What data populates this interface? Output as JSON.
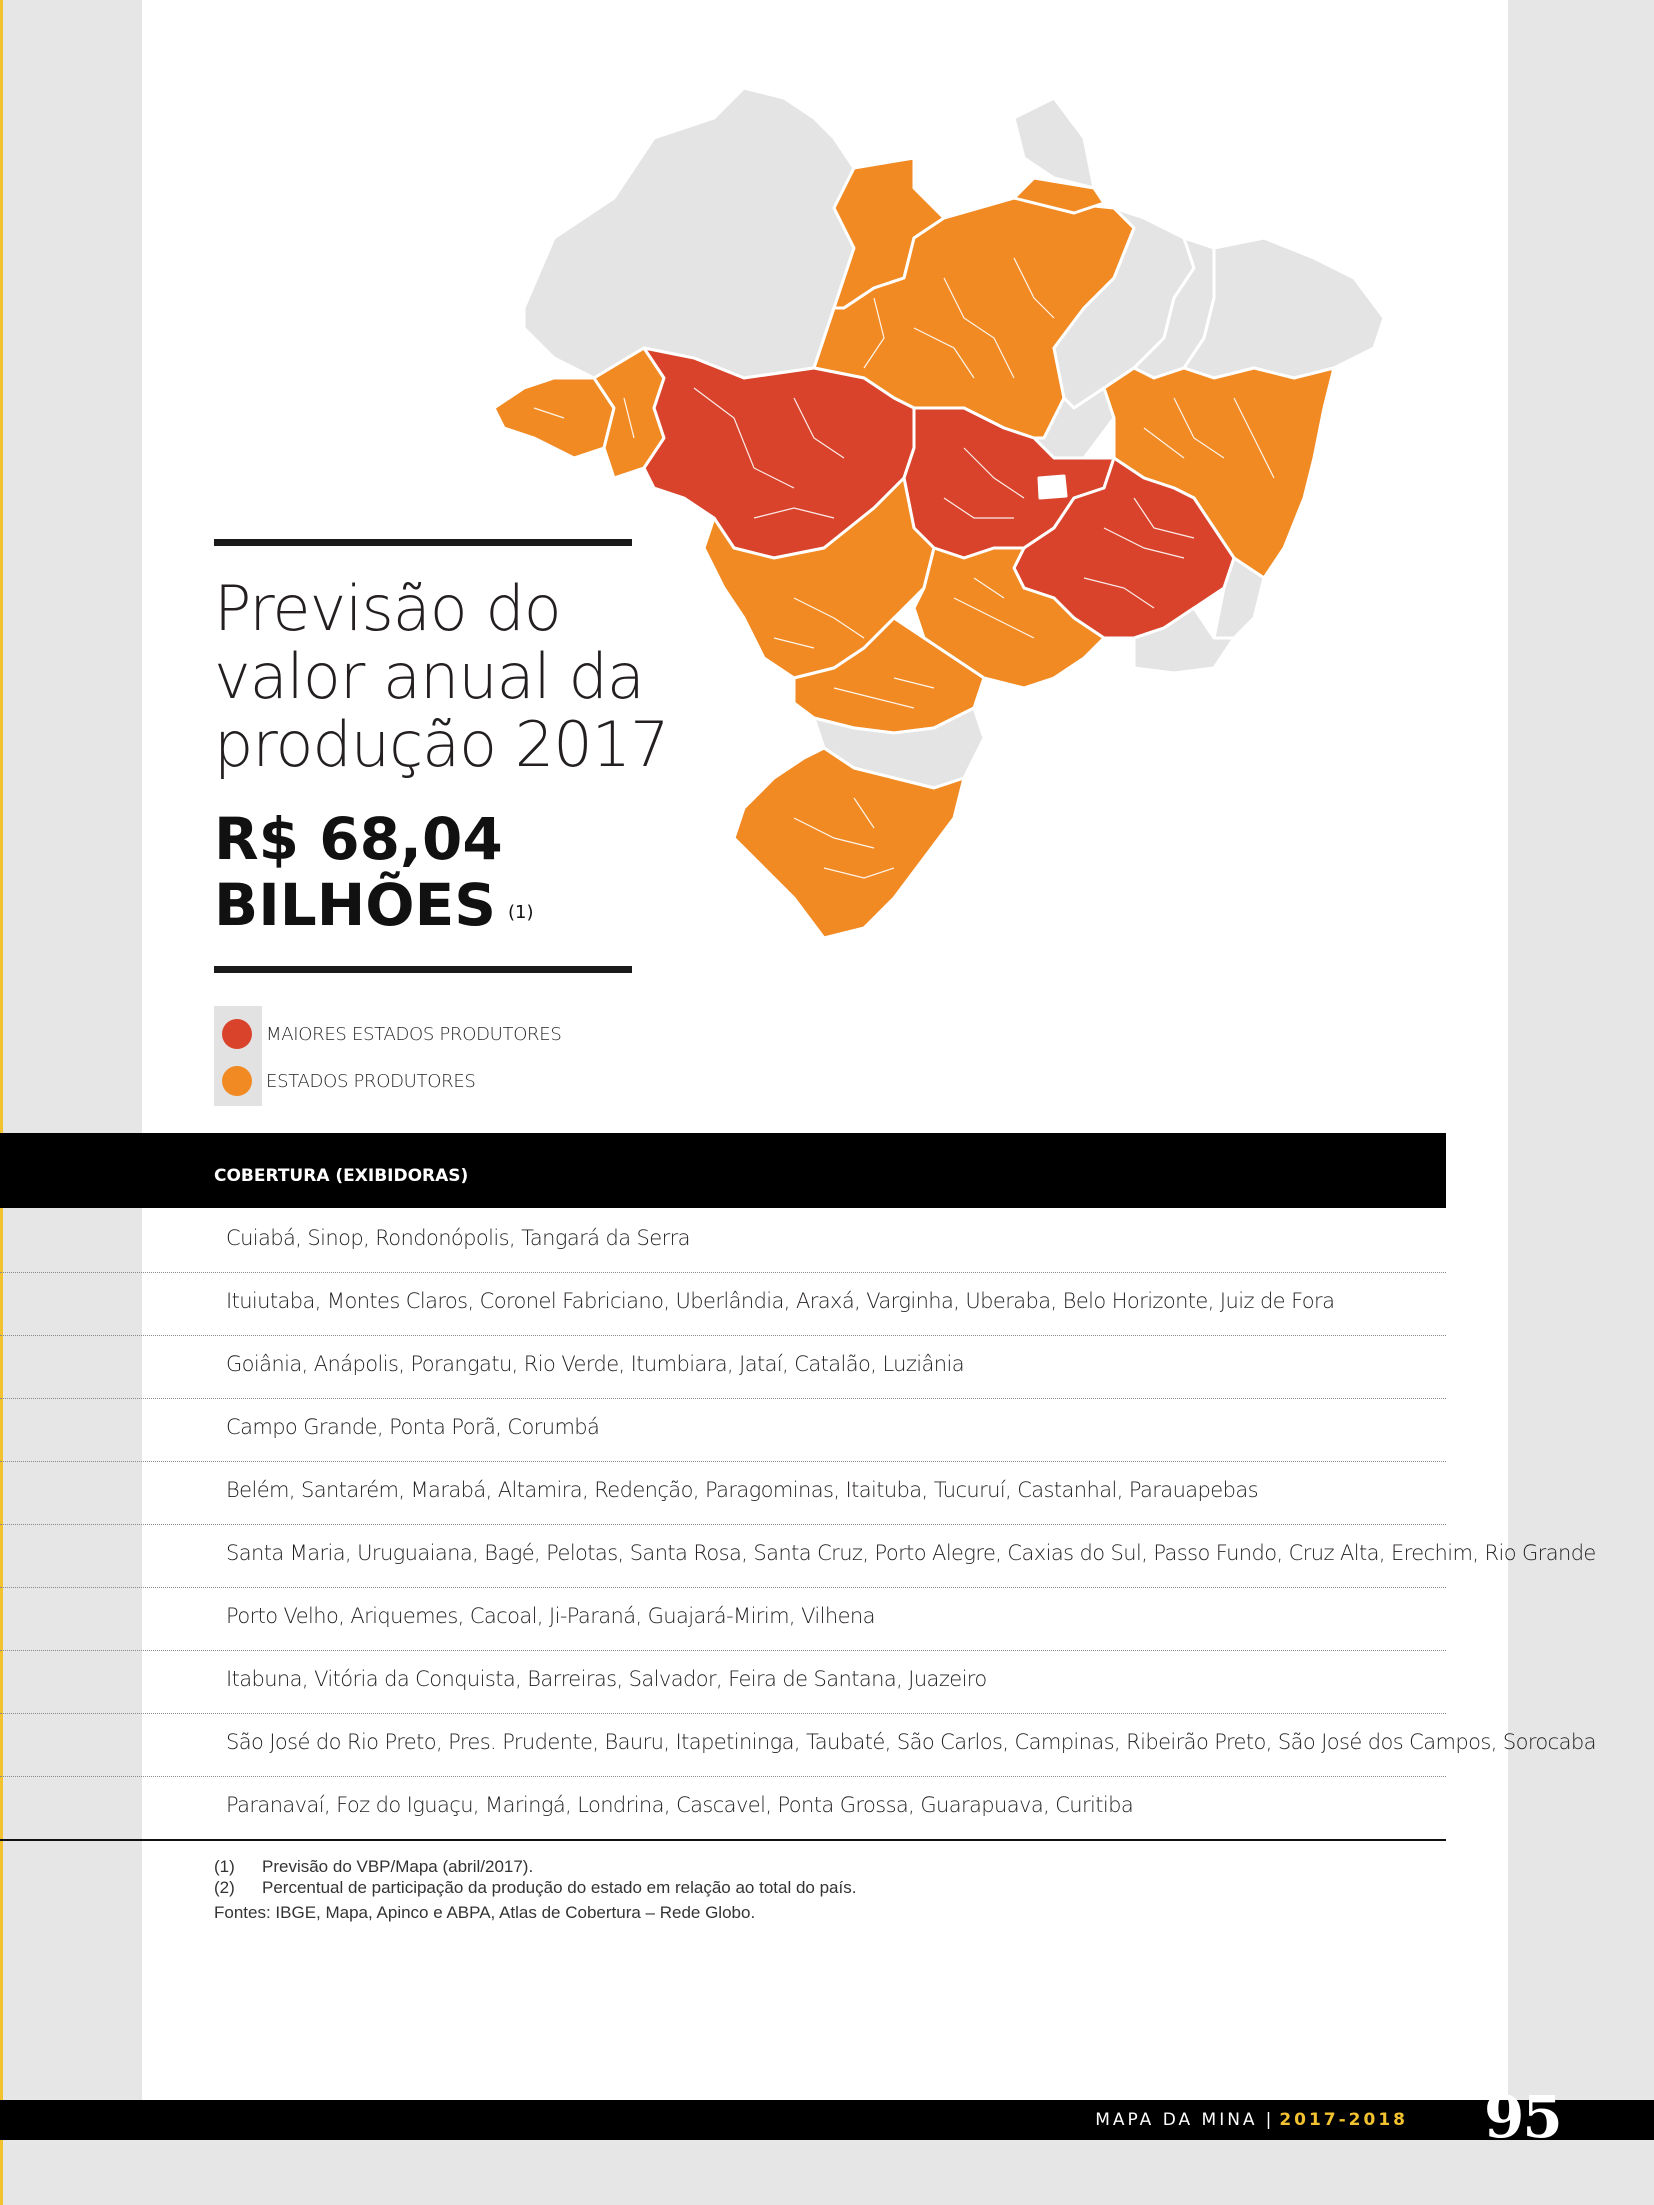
{
  "title": {
    "lines": [
      "Previsão do",
      "valor anual da",
      "produção 2017"
    ],
    "value_line1": "R$ 68,04",
    "value_line2": "BILHÕES",
    "value_note": "(1)"
  },
  "legend": [
    {
      "label": "MAIORES ESTADOS PRODUTORES",
      "color": "#d9432b"
    },
    {
      "label": "ESTADOS PRODUTORES",
      "color": "#f28a23"
    }
  ],
  "map": {
    "colors": {
      "major": "#d9432b",
      "producer": "#f28a23",
      "other": "#e4e4e5",
      "border": "#ffffff"
    }
  },
  "coverage": {
    "title": "COBERTURA (EXIBIDORAS)",
    "rows": [
      "Cuiabá, Sinop, Rondonópolis, Tangará da Serra",
      "Ituiutaba, Montes Claros, Coronel Fabriciano, Uberlândia, Araxá, Varginha, Uberaba, Belo Horizonte, Juiz de Fora",
      "Goiânia, Anápolis, Porangatu, Rio Verde, Itumbiara, Jataí, Catalão, Luziânia",
      "Campo Grande, Ponta Porã, Corumbá",
      "Belém, Santarém, Marabá, Altamira, Redenção, Paragominas, Itaituba, Tucuruí, Castanhal, Parauapebas",
      "Santa Maria, Uruguaiana, Bagé, Pelotas, Santa Rosa, Santa Cruz, Porto Alegre, Caxias do Sul, Passo Fundo, Cruz Alta, Erechim, Rio Grande",
      "Porto Velho, Ariquemes, Cacoal, Ji-Paraná, Guajará-Mirim, Vilhena",
      "Itabuna, Vitória da Conquista, Barreiras, Salvador, Feira de Santana, Juazeiro",
      "São José do Rio Preto, Pres. Prudente, Bauru, Itapetininga, Taubaté, São Carlos, Campinas, Ribeirão Preto, São José dos Campos, Sorocaba",
      "Paranavaí, Foz do Iguaçu, Maringá, Londrina, Cascavel, Ponta Grossa, Guarapuava, Curitiba"
    ]
  },
  "footnotes": {
    "note1_num": "(1)",
    "note1_text": "Previsão do VBP/Mapa (abril/2017).",
    "note2_num": "(2)",
    "note2_text": "Percentual de participação da produção do estado em relação ao total do país.",
    "sources": "Fontes: IBGE, Mapa, Apinco e ABPA, Atlas de Cobertura – Rede Globo."
  },
  "footer": {
    "publication": "MAPA DA MINA",
    "divider": "|",
    "years": "2017-2018",
    "page_number": "95"
  }
}
